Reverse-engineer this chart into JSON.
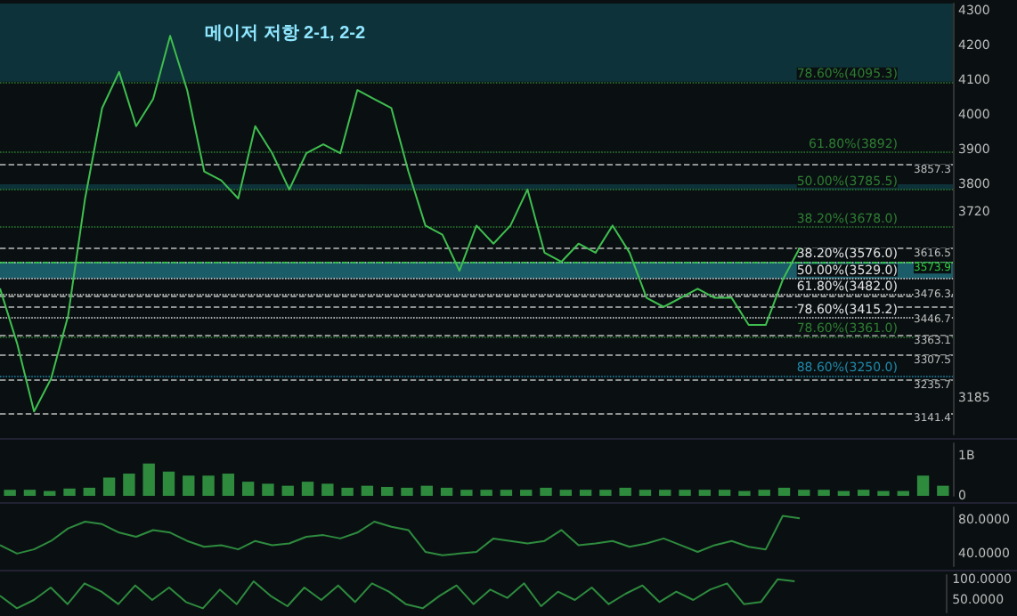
{
  "chart_data": [
    {
      "type": "line",
      "annotations": [
        "메이저 저항 2-1, 2-2"
      ],
      "categories": [
        null,
        null,
        null,
        null,
        null,
        null,
        null,
        null,
        null,
        null,
        null,
        null,
        null,
        null,
        null,
        null,
        null,
        null,
        null,
        null,
        null,
        null,
        null,
        null,
        null,
        null,
        null,
        null,
        null,
        null,
        null,
        null,
        null,
        null,
        null,
        null,
        null,
        null,
        null,
        null,
        null,
        null,
        null,
        null,
        null,
        null,
        null,
        null,
        null,
        null,
        null,
        null,
        null,
        null,
        null,
        null,
        null
      ],
      "series": [
        {
          "color": "#3fbf4f",
          "values": [
            3500,
            3343,
            3146,
            3240,
            3421,
            3759,
            4019,
            4123,
            3967,
            4045,
            4227,
            4071,
            3837,
            3811,
            3759,
            3967,
            3889,
            3785,
            3889,
            3915,
            3889,
            4071,
            4045,
            4019,
            3837,
            3681,
            3655,
            3551,
            3681,
            3629,
            3681,
            3785,
            3603,
            3577,
            3629,
            3603,
            3681,
            3603,
            3473,
            3447,
            3473,
            3499,
            3473,
            3473,
            3395,
            3395,
            3525,
            3616.5,
            null,
            null,
            null,
            null,
            null,
            null,
            null,
            null,
            null
          ]
        }
      ],
      "ylim": [
        3080,
        4320
      ],
      "yticks": [
        3185,
        3720,
        3800,
        3900,
        4000,
        4100,
        4200,
        4300
      ],
      "tick_labels": "y",
      "ref_lines": [
        {
          "axis": "y",
          "value": 4095.3,
          "label": "78.60%(4095.3)",
          "color": "#2e7d32",
          "line_style": "dotted"
        },
        {
          "axis": "y",
          "value": 3892,
          "label": "61.80%(3892)",
          "color": "#2e7d32",
          "line_style": "dotted"
        },
        {
          "axis": "y",
          "value": 3785.5,
          "label": "50.00%(3785.5)",
          "color": "#2e7d32",
          "line_style": "dotted"
        },
        {
          "axis": "y",
          "value": 3678,
          "label": "38.20%(3678.0)",
          "color": "#2e7d32",
          "line_style": "dotted"
        },
        {
          "axis": "y",
          "value": 3576,
          "label": "38.20%(3576.0)",
          "color": "#e0e0e0",
          "line_style": "dotted"
        },
        {
          "axis": "y",
          "value": 3529,
          "label": "50.00%(3529.0)",
          "color": "#e0e0e0",
          "line_style": "dotted"
        },
        {
          "axis": "y",
          "value": 3482,
          "label": "61.80%(3482.0)",
          "color": "#e0e0e0",
          "line_style": "dotted"
        },
        {
          "axis": "y",
          "value": 3415.2,
          "label": "78.60%(3415.2)",
          "color": "#e0e0e0",
          "line_style": "dotted"
        },
        {
          "axis": "y",
          "value": 3361,
          "label": "78.60%(3361.0)",
          "color": "#2e7d32",
          "line_style": "dotted"
        },
        {
          "axis": "y",
          "value": 3250,
          "label": "88.60%(3250.0)",
          "color": "#1e88a8",
          "line_style": "dotted"
        },
        {
          "axis": "y",
          "value": 3857.3,
          "label": "3857.3",
          "color": "#bdbdbd",
          "line_style": "dashed"
        },
        {
          "axis": "y",
          "value": 3616.5,
          "label": "3616.5",
          "color": "#bdbdbd",
          "line_style": "dashed"
        },
        {
          "axis": "y",
          "value": 3573.9,
          "label": "3573.9",
          "color": "#2ecc40",
          "line_style": "dashed"
        },
        {
          "axis": "y",
          "value": 3476.3,
          "label": "3476.3",
          "color": "#bdbdbd",
          "line_style": "dashed"
        },
        {
          "axis": "y",
          "value": 3446.7,
          "label": "3446.7",
          "color": "#bdbdbd",
          "line_style": "dashed"
        },
        {
          "axis": "y",
          "value": 3363.1,
          "label": "3363.1",
          "color": "#bdbdbd",
          "line_style": "dashed"
        },
        {
          "axis": "y",
          "value": 3307.5,
          "label": "3307.5",
          "color": "#bdbdbd",
          "line_style": "dashed"
        },
        {
          "axis": "y",
          "value": 3235.7,
          "label": "3235.7",
          "color": "#bdbdbd",
          "line_style": "dashed"
        },
        {
          "axis": "y",
          "value": 3141.4,
          "label": "3141.4",
          "color": "#bdbdbd",
          "line_style": "dashed"
        }
      ],
      "bands": [
        {
          "axis": "y",
          "from": 4095.3,
          "to": 4320,
          "color": "#0f3b44"
        },
        {
          "axis": "y",
          "from": 3785.5,
          "to": 3800,
          "color": "#0f3b44"
        },
        {
          "axis": "y",
          "from": 3529,
          "to": 3576,
          "color": "#1f6f7f"
        }
      ]
    },
    {
      "type": "bar",
      "categories": [
        null,
        null,
        null,
        null,
        null,
        null,
        null,
        null,
        null,
        null,
        null,
        null,
        null,
        null,
        null,
        null,
        null,
        null,
        null,
        null,
        null,
        null,
        null,
        null,
        null,
        null,
        null,
        null,
        null,
        null,
        null,
        null,
        null,
        null,
        null,
        null,
        null,
        null,
        null,
        null,
        null,
        null,
        null,
        null,
        null,
        null,
        null,
        null
      ],
      "series": [
        {
          "color": "#2e8b3e",
          "values": [
            0.15,
            0.15,
            0.12,
            0.18,
            0.2,
            0.45,
            0.55,
            0.8,
            0.6,
            0.5,
            0.5,
            0.55,
            0.35,
            0.3,
            0.25,
            0.35,
            0.3,
            0.2,
            0.25,
            0.22,
            0.2,
            0.25,
            0.2,
            0.15,
            0.15,
            0.15,
            0.15,
            0.2,
            0.15,
            0.15,
            0.15,
            0.2,
            0.15,
            0.15,
            0.15,
            0.15,
            0.15,
            0.12,
            0.15,
            0.2,
            0.15,
            0.15,
            0.12,
            0.15,
            0.12,
            0.12,
            0.5,
            0.25
          ]
        }
      ],
      "ylim": [
        0,
        1.3
      ],
      "yticks": [
        0,
        {
          "value": 1,
          "label": "1B"
        }
      ],
      "tick_labels": "y"
    },
    {
      "type": "line",
      "categories": [
        null,
        null,
        null,
        null,
        null,
        null,
        null,
        null,
        null,
        null,
        null,
        null,
        null,
        null,
        null,
        null,
        null,
        null,
        null,
        null,
        null,
        null,
        null,
        null,
        null,
        null,
        null,
        null,
        null,
        null,
        null,
        null,
        null,
        null,
        null,
        null,
        null,
        null,
        null,
        null,
        null,
        null,
        null,
        null,
        null,
        null,
        null,
        null,
        null,
        null,
        null,
        null,
        null,
        null,
        null,
        null,
        null
      ],
      "series": [
        {
          "color": "#2e8b3e",
          "values": [
            50,
            40,
            45,
            55,
            70,
            78,
            75,
            65,
            60,
            68,
            65,
            55,
            48,
            50,
            45,
            55,
            50,
            52,
            60,
            62,
            58,
            65,
            78,
            72,
            68,
            42,
            38,
            40,
            42,
            58,
            55,
            52,
            55,
            68,
            50,
            52,
            55,
            48,
            52,
            58,
            50,
            42,
            50,
            55,
            48,
            45,
            85,
            82,
            null,
            null,
            null,
            null,
            null,
            null,
            null,
            null,
            null
          ]
        }
      ],
      "ylim": [
        25,
        95
      ],
      "yticks": [
        {
          "value": 40,
          "label": "40.0000"
        },
        {
          "value": 80,
          "label": "80.0000"
        }
      ],
      "tick_labels": "y"
    },
    {
      "type": "line",
      "categories": [
        null,
        null,
        null,
        null,
        null,
        null,
        null,
        null,
        null,
        null,
        null,
        null,
        null,
        null,
        null,
        null,
        null,
        null,
        null,
        null,
        null,
        null,
        null,
        null,
        null,
        null,
        null,
        null,
        null,
        null,
        null,
        null,
        null,
        null,
        null,
        null,
        null,
        null,
        null,
        null,
        null,
        null,
        null,
        null,
        null,
        null,
        null,
        null,
        null,
        null,
        null,
        null,
        null,
        null,
        null,
        null,
        null
      ],
      "series": [
        {
          "color": "#2e8b3e",
          "values": [
            60,
            30,
            50,
            80,
            40,
            90,
            70,
            40,
            85,
            50,
            80,
            45,
            30,
            75,
            40,
            95,
            60,
            35,
            80,
            50,
            85,
            45,
            90,
            70,
            40,
            30,
            60,
            85,
            40,
            75,
            55,
            90,
            35,
            70,
            50,
            80,
            40,
            65,
            85,
            45,
            70,
            50,
            75,
            90,
            40,
            45,
            100,
            95,
            null,
            null,
            null,
            null,
            null,
            null,
            null,
            null,
            null
          ]
        }
      ],
      "ylim": [
        20,
        110
      ],
      "yticks": [
        {
          "value": 50,
          "label": "50.0000"
        },
        {
          "value": 100,
          "label": "100.0000"
        }
      ],
      "tick_labels": "y"
    }
  ]
}
